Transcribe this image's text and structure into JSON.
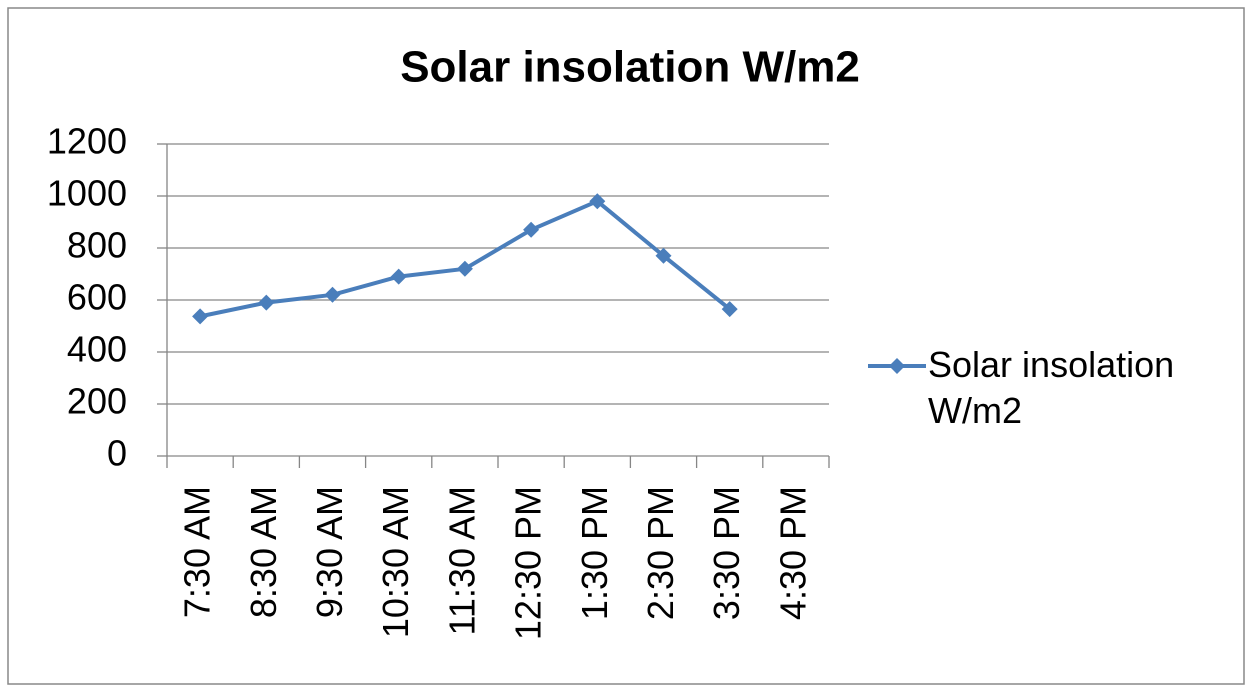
{
  "chart_data": {
    "type": "line",
    "title": "Solar insolation W/m2",
    "categories": [
      "7:30 AM",
      "8:30 AM",
      "9:30 AM",
      "10:30 AM",
      "11:30 AM",
      "12:30 PM",
      "1:30 PM",
      "2:30 PM",
      "3:30 PM",
      "4:30 PM"
    ],
    "series": [
      {
        "name": "Solar insolation W/m2",
        "color": "#4a7ebb",
        "values": [
          537,
          590,
          620,
          690,
          720,
          870,
          980,
          770,
          565,
          null
        ]
      }
    ],
    "ylim": [
      0,
      1200
    ],
    "yticks": [
      0,
      200,
      400,
      600,
      800,
      1000,
      1200
    ],
    "grid": true,
    "legend": "right"
  }
}
